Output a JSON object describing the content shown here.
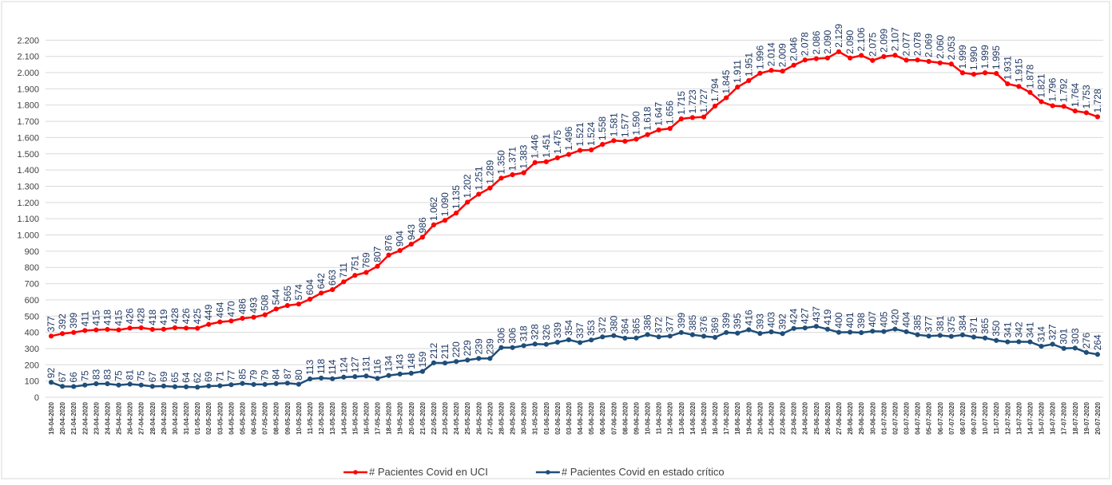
{
  "chart_data": {
    "type": "line",
    "categories": [
      "19-04-2020",
      "20-04-2020",
      "21-04-2020",
      "22-04-2020",
      "23-04-2020",
      "24-04-2020",
      "25-04-2020",
      "26-04-2020",
      "27-04-2020",
      "28-04-2020",
      "29-04-2020",
      "30-04-2020",
      "31-04-2020",
      "01-05-2020",
      "02-05-2020",
      "03-05-2020",
      "04-05-2020",
      "05-05-2020",
      "06-05-2020",
      "07-05-2020",
      "08-05-2020",
      "09-05-2020",
      "10-05-2020",
      "11-05-2020",
      "12-05-2020",
      "13-05-2020",
      "14-05-2020",
      "15-05-2020",
      "16-05-2020",
      "17-05-2020",
      "18-05-2020",
      "19-05-2020",
      "20-05-2020",
      "21-05-2020",
      "22-05-2020",
      "23-05-2020",
      "24-05-2020",
      "25-05-2020",
      "26-05-2020",
      "27-05-2020",
      "28-05-2020",
      "29-05-2020",
      "30-05-2020",
      "31-05-2020",
      "01-06-2020",
      "02-06-2020",
      "03-06-2020",
      "04-06-2020",
      "05-06-2020",
      "06-06-2020",
      "07-06-2020",
      "08-06-2020",
      "09-06-2020",
      "10-06-2020",
      "11-06-2020",
      "12-06-2020",
      "13-06-2020",
      "14-06-2020",
      "15-06-2020",
      "16-06-2020",
      "17-06-2020",
      "18-06-2020",
      "19-06-2020",
      "20-06-2020",
      "21-06-2020",
      "22-06-2020",
      "23-06-2020",
      "24-06-2020",
      "25-06-2020",
      "26-06-2020",
      "27-06-2020",
      "28-06-2020",
      "29-06-2020",
      "30-06-2020",
      "01-07-2020",
      "02-07-2020",
      "03-07-2020",
      "04-07-2020",
      "05-07-2020",
      "06-07-2020",
      "07-07-2020",
      "08-07-2020",
      "09-07-2020",
      "10-07-2020",
      "11-07-2020",
      "12-07-2020",
      "13-07-2020",
      "14-07-2020",
      "15-07-2020",
      "16-07-2020",
      "17-07-2020",
      "18-07-2020",
      "19-07-2020",
      "20-07-2020"
    ],
    "series": [
      {
        "name": "# Pacientes Covid en UCI",
        "color": "#ff0000",
        "values": [
          377,
          392,
          399,
          411,
          415,
          418,
          415,
          426,
          428,
          418,
          419,
          428,
          426,
          425,
          449,
          464,
          470,
          486,
          493,
          508,
          544,
          565,
          574,
          604,
          642,
          663,
          711,
          751,
          769,
          807,
          876,
          904,
          943,
          986,
          1062,
          1090,
          1135,
          1202,
          1251,
          1289,
          1350,
          1371,
          1383,
          1446,
          1451,
          1475,
          1496,
          1521,
          1524,
          1558,
          1581,
          1577,
          1590,
          1618,
          1647,
          1656,
          1715,
          1723,
          1727,
          1794,
          1845,
          1911,
          1951,
          1996,
          2014,
          2009,
          2046,
          2078,
          2086,
          2090,
          2129,
          2090,
          2106,
          2075,
          2099,
          2107,
          2077,
          2078,
          2069,
          2060,
          2053,
          1999,
          1990,
          1999,
          1995,
          1931,
          1915,
          1878,
          1821,
          1796,
          1792,
          1764,
          1753,
          1728
        ],
        "value_labels": [
          "377",
          "392",
          "399",
          "411",
          "415",
          "418",
          "415",
          "426",
          "428",
          "418",
          "419",
          "428",
          "426",
          "425",
          "449",
          "464",
          "470",
          "486",
          "493",
          "508",
          "544",
          "565",
          "574",
          "604",
          "642",
          "663",
          "711",
          "751",
          "769",
          "807",
          "876",
          "904",
          "943",
          "986",
          "1.062",
          "1.090",
          "1.135",
          "1.202",
          "1.251",
          "1.289",
          "1.350",
          "1.371",
          "1.383",
          "1.446",
          "1.451",
          "1.475",
          "1.496",
          "1.521",
          "1.524",
          "1.558",
          "1.581",
          "1.577",
          "1.590",
          "1.618",
          "1.647",
          "1.656",
          "1.715",
          "1.723",
          "1.727",
          "1.794",
          "1.845",
          "1.911",
          "1.951",
          "1.996",
          "2.014",
          "2.009",
          "2.046",
          "2.078",
          "2.086",
          "2.090",
          "2.129",
          "2.090",
          "2.106",
          "2.075",
          "2.099",
          "2.107",
          "2.077",
          "2.078",
          "2.069",
          "2.060",
          "2.053",
          "1.999",
          "1.990",
          "1.999",
          "1.995",
          "1.931",
          "1.915",
          "1.878",
          "1.821",
          "1.796",
          "1.792",
          "1.764",
          "1.753",
          "1.728"
        ]
      },
      {
        "name": "# Pacientes Covid en estado crítico",
        "color": "#1f4e79",
        "values": [
          92,
          67,
          66,
          75,
          83,
          83,
          75,
          81,
          75,
          67,
          69,
          65,
          64,
          62,
          69,
          71,
          77,
          85,
          79,
          79,
          84,
          87,
          80,
          113,
          118,
          114,
          124,
          127,
          131,
          116,
          134,
          143,
          148,
          159,
          212,
          211,
          220,
          229,
          239,
          239,
          306,
          306,
          318,
          328,
          326,
          339,
          354,
          337,
          353,
          372,
          380,
          364,
          365,
          386,
          372,
          377,
          399,
          385,
          376,
          369,
          399,
          395,
          416,
          393,
          403,
          392,
          424,
          427,
          437,
          419,
          400,
          401,
          398,
          407,
          405,
          420,
          404,
          385,
          377,
          381,
          375,
          384,
          371,
          365,
          350,
          341,
          342,
          341,
          314,
          327,
          301,
          303,
          276,
          264
        ]
      }
    ],
    "ylim": [
      0,
      2300
    ],
    "yticks": [
      0,
      100,
      200,
      300,
      400,
      500,
      600,
      700,
      800,
      900,
      {
        "value": 1000,
        "label": "1.000"
      },
      {
        "value": 1100,
        "label": "1.100"
      },
      {
        "value": 1200,
        "label": "1.200"
      },
      {
        "value": 1300,
        "label": "1.300"
      },
      {
        "value": 1400,
        "label": "1.400"
      },
      {
        "value": 1500,
        "label": "1.500"
      },
      {
        "value": 1600,
        "label": "1.600"
      },
      {
        "value": 1700,
        "label": "1.700"
      },
      {
        "value": 1800,
        "label": "1.800"
      },
      {
        "value": 1900,
        "label": "1.900"
      },
      {
        "value": 2000,
        "label": "2.000"
      },
      {
        "value": 2100,
        "label": "2.100"
      },
      {
        "value": 2200,
        "label": "2.200"
      }
    ],
    "grid": true,
    "legend": "bottom"
  }
}
